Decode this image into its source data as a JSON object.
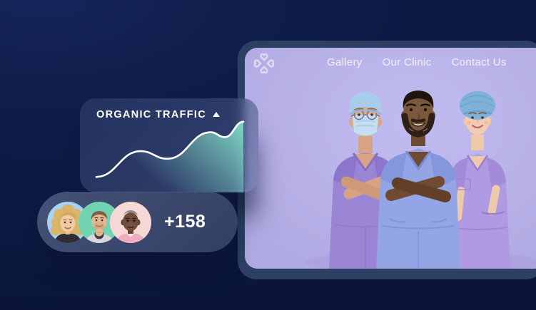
{
  "page": {
    "background_top": "#16255a",
    "background_bottom": "#0a1539"
  },
  "window": {
    "frame_color": "#2d4063",
    "content_color": "#b5b0e6",
    "logo_icon": "clover-of-hearts-logo",
    "nav": [
      {
        "label": "Gallery"
      },
      {
        "label": "Our Clinic"
      },
      {
        "label": "Contact Us"
      }
    ],
    "hero_palette": {
      "scrubs_purple": "#9b85d5",
      "scrubs_periwinkle": "#93a5e4",
      "scrubs_lilac": "#b09ae2",
      "cap_blue": "#a8cdeb",
      "bouffant_blue": "#7eb2d7",
      "mask_blue": "#c6def2"
    }
  },
  "traffic_card": {
    "title": "ORGANIC TRAFFIC",
    "trend_icon": "arrow-up",
    "accent": "#7fd7c5"
  },
  "chart_data": {
    "type": "area",
    "title": "ORGANIC TRAFFIC",
    "x": [
      0,
      0.3,
      0.485,
      0.777,
      0.874,
      1
    ],
    "values": [
      0.14,
      0.51,
      0.4,
      0.78,
      0.71,
      0.93
    ],
    "line_color": "#ffffff",
    "fill_color": "#7fd7c5",
    "grid": false,
    "axes": false,
    "legend": false
  },
  "followers_pill": {
    "count_label": "+158",
    "avatars": [
      {
        "icon": "avatar-blonde-woman",
        "bg": "#a9d1f0"
      },
      {
        "icon": "avatar-bearded-man",
        "bg": "#70d4b2"
      },
      {
        "icon": "avatar-senior-man",
        "bg": "#f6d8d5"
      }
    ]
  }
}
